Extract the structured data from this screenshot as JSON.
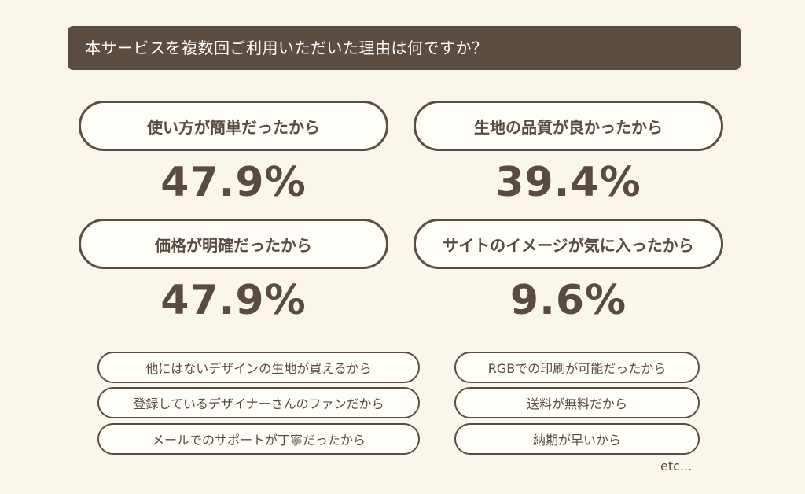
{
  "question": "本サービスを複数回ご利用いただいた理由は何ですか？",
  "chart_data": {
    "type": "table",
    "title": "本サービスを複数回ご利用いただいた理由は何ですか？",
    "categories": [
      "使い方が簡単だったから",
      "生地の品質が良かったから",
      "価格が明確だったから",
      "サイトのイメージが気に入ったから"
    ],
    "values": [
      "47.9%",
      "39.4%",
      "47.9%",
      "9.6%"
    ]
  },
  "reasons": [
    {
      "label": "使い方が簡単だったから",
      "value": "47.9%"
    },
    {
      "label": "生地の品質が良かったから",
      "value": "39.4%"
    },
    {
      "label": "価格が明確だったから",
      "value": "47.9%"
    },
    {
      "label": "サイトのイメージが気に入ったから",
      "value": "9.6%"
    }
  ],
  "other_reasons": [
    "他にはないデザインの生地が買えるから",
    "RGBでの印刷が可能だったから",
    "登録しているデザイナーさんのファンだから",
    "送料が無料だから",
    "メールでのサポートが丁寧だったから",
    "納期が早いから"
  ],
  "etc_label": "etc...",
  "colors": {
    "background": "#fbf6ec",
    "accent": "#5c4d42",
    "text": "#5a4a40"
  }
}
